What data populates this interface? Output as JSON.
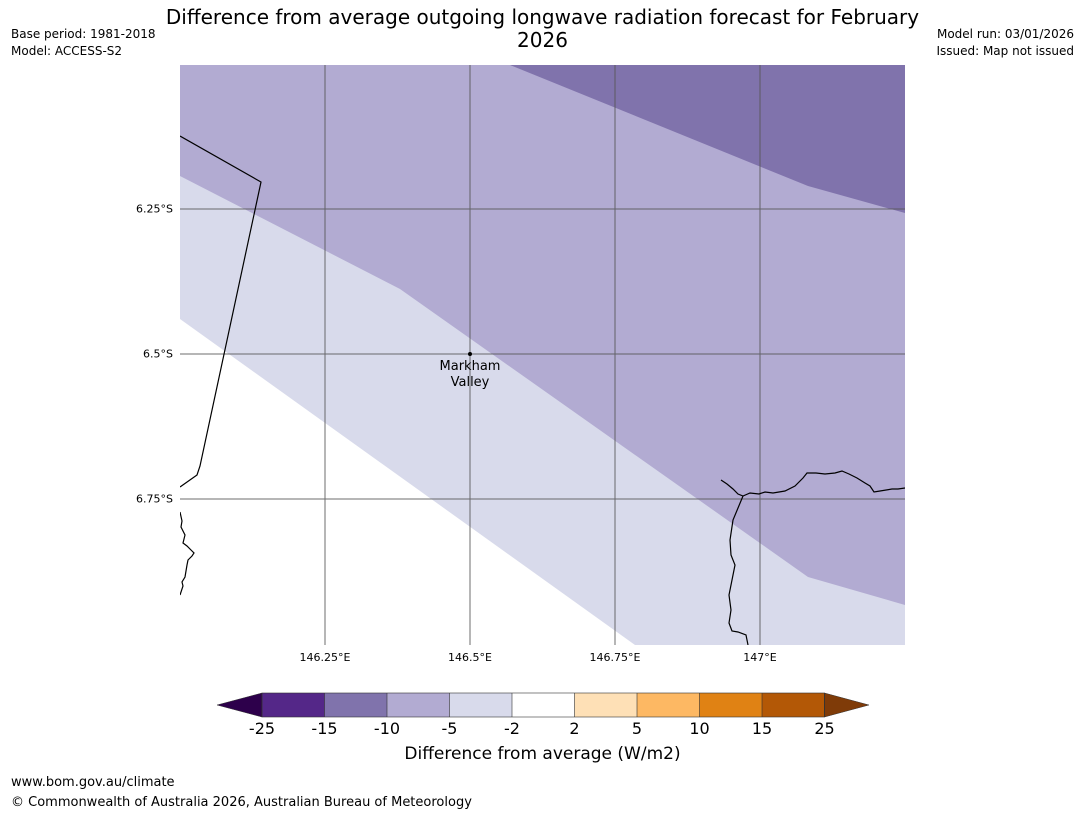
{
  "header": {
    "title": "Difference from average outgoing longwave radiation forecast for February 2026",
    "base_period": "Base period: 1981-2018",
    "model": "Model: ACCESS-S2",
    "model_run": "Model run: 03/01/2026",
    "issued": "Issued: Map not issued"
  },
  "map": {
    "latitude_labels": [
      "6.25°S",
      "6.5°S",
      "6.75°S"
    ],
    "longitude_labels": [
      "146.25°E",
      "146.5°E",
      "146.75°E",
      "147°E"
    ],
    "town": {
      "name": "Markham Valley",
      "line1": "Markham",
      "line2": "Valley"
    },
    "fill_colors": {
      "minus_15_to_minus_10": "#8073ac",
      "minus_10_to_minus_5": "#b2abd2",
      "minus_5_to_minus_2": "#d8daeb",
      "minus_2_to_2": "#ffffff"
    }
  },
  "colorbar": {
    "title": "Difference from average (W/m2)",
    "ticks": [
      "-25",
      "-15",
      "-10",
      "-5",
      "-2",
      "2",
      "5",
      "10",
      "15",
      "25"
    ],
    "colors": [
      "#2d004b",
      "#542788",
      "#8073ac",
      "#b2abd2",
      "#d8daeb",
      "#ffffff",
      "#fee0b6",
      "#fdb863",
      "#e08214",
      "#b35806",
      "#7f3b08"
    ]
  },
  "footer": {
    "url": "www.bom.gov.au/climate",
    "copyright": "© Commonwealth of Australia 2026, Australian Bureau of Meteorology"
  }
}
